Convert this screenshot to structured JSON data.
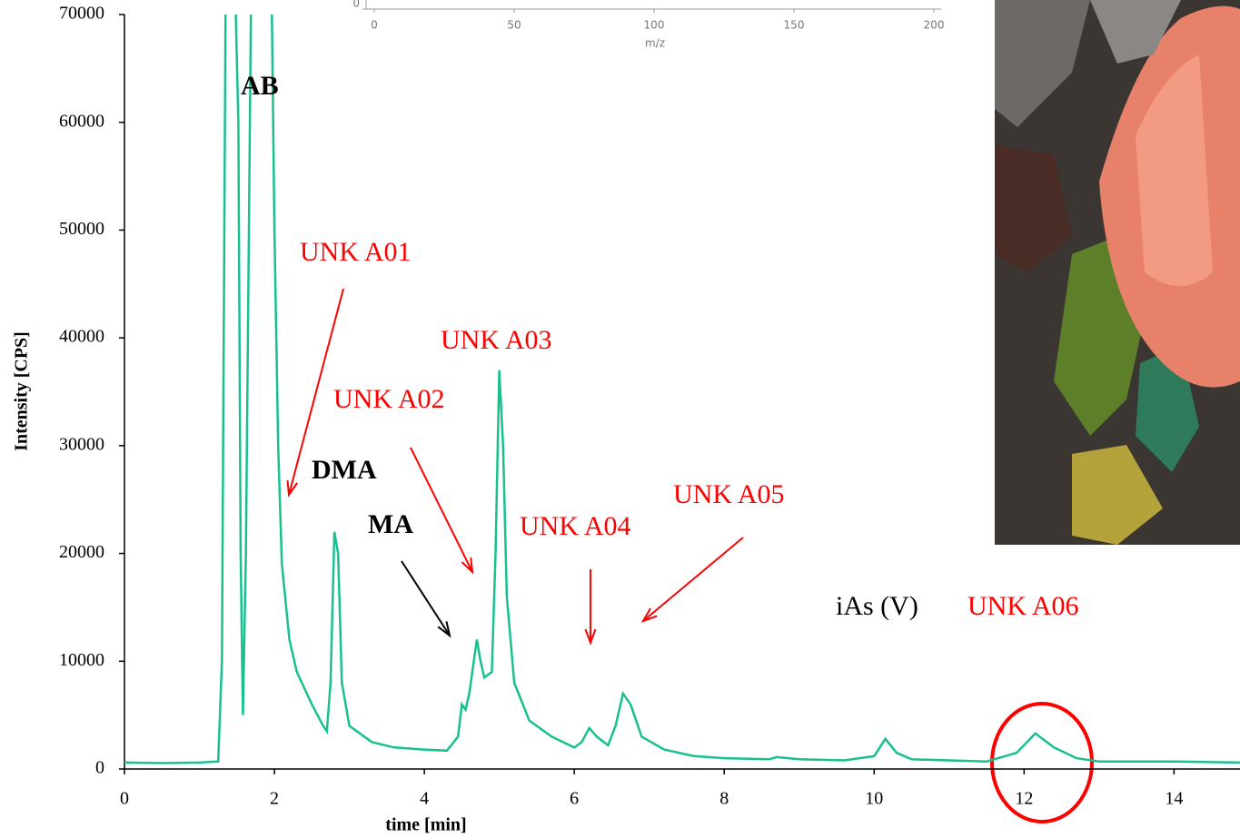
{
  "chart_data": [
    {
      "type": "line",
      "xlabel": "time [min]",
      "ylabel": "Intensity [CPS]",
      "color": "#19c08f",
      "xlim": [
        0,
        14.88
      ],
      "ylim": [
        0,
        70000
      ],
      "xticks": [
        0,
        2,
        4,
        6,
        8,
        10,
        12,
        14
      ],
      "yticks": [
        0,
        10000,
        20000,
        30000,
        40000,
        50000,
        60000,
        70000
      ],
      "x": [
        0,
        0.5,
        1.0,
        1.25,
        1.3,
        1.35,
        1.45,
        1.52,
        1.55,
        1.58,
        1.62,
        1.7,
        1.95,
        2.0,
        2.05,
        2.1,
        2.2,
        2.3,
        2.5,
        2.65,
        2.7,
        2.75,
        2.8,
        2.85,
        2.9,
        3.0,
        3.3,
        3.6,
        4.0,
        4.3,
        4.45,
        4.5,
        4.55,
        4.6,
        4.7,
        4.75,
        4.8,
        4.9,
        4.95,
        5.0,
        5.05,
        5.1,
        5.2,
        5.4,
        5.7,
        6.0,
        6.1,
        6.2,
        6.3,
        6.45,
        6.55,
        6.65,
        6.75,
        6.9,
        7.2,
        7.6,
        8.0,
        8.6,
        8.7,
        9.0,
        9.6,
        10.0,
        10.15,
        10.3,
        10.5,
        11.5,
        11.9,
        12.15,
        12.4,
        12.7,
        13.0,
        14.0,
        14.88
      ],
      "values": [
        600,
        550,
        600,
        700,
        10000,
        72000,
        80000,
        60000,
        20000,
        5000,
        20000,
        80000,
        80000,
        50000,
        30000,
        19000,
        12000,
        9000,
        6000,
        4000,
        3500,
        8000,
        22000,
        20000,
        8000,
        4000,
        2500,
        2000,
        1800,
        1700,
        3000,
        6000,
        5500,
        7000,
        12000,
        10000,
        8500,
        9000,
        20000,
        37000,
        30000,
        16000,
        8000,
        4500,
        3000,
        2000,
        2500,
        3800,
        3000,
        2200,
        4000,
        7000,
        6000,
        3000,
        1800,
        1200,
        1000,
        900,
        1100,
        900,
        800,
        1200,
        2800,
        1500,
        900,
        700,
        1500,
        3300,
        2000,
        1000,
        700,
        700,
        600
      ],
      "annotations": [
        {
          "text": "AB",
          "color": "#000000"
        },
        {
          "text": "UNK A01",
          "color": "#ff0000"
        },
        {
          "text": "UNK A03",
          "color": "#ff0000"
        },
        {
          "text": "UNK A02",
          "color": "#ff0000"
        },
        {
          "text": "DMA",
          "color": "#000000"
        },
        {
          "text": "MA",
          "color": "#000000"
        },
        {
          "text": "UNK A04",
          "color": "#ff0000"
        },
        {
          "text": "UNK A05",
          "color": "#ff0000"
        },
        {
          "text": "iAs (V)",
          "color": "#000000"
        },
        {
          "text": "UNK A06",
          "color": "#ff0000"
        }
      ]
    },
    {
      "type": "spectrum",
      "xlabel": "m/z",
      "xlim": [
        0,
        200
      ],
      "xticks": [
        0,
        50,
        100,
        150,
        200
      ],
      "yticks": [
        0
      ]
    }
  ]
}
